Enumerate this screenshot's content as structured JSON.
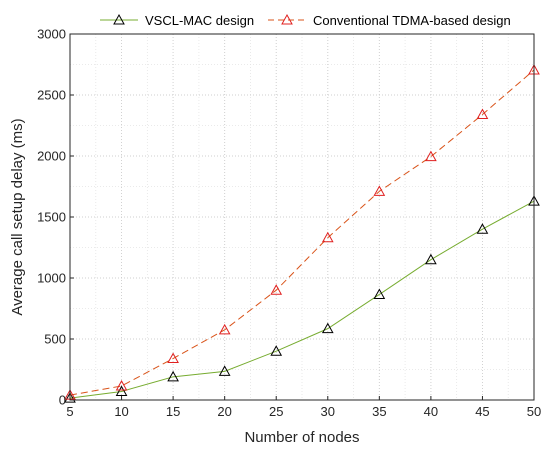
{
  "chart_data": {
    "type": "line",
    "title": "",
    "xlabel": "Number of nodes",
    "ylabel": "Average call setup delay (ms)",
    "x": [
      5,
      10,
      15,
      20,
      25,
      30,
      35,
      40,
      45,
      50
    ],
    "xlim": [
      5,
      50
    ],
    "ylim": [
      0,
      3000
    ],
    "xticks": [
      "5",
      "10",
      "15",
      "20",
      "25",
      "30",
      "35",
      "40",
      "45",
      "50"
    ],
    "yticks": [
      "0",
      "500",
      "1000",
      "1500",
      "2000",
      "2500",
      "3000"
    ],
    "grid": true,
    "legend_position": "top",
    "series": [
      {
        "name": "VSCL-MAC design",
        "color": "#77AC30",
        "marker_color": "#000000",
        "line_style": "solid",
        "marker": "triangle",
        "values": [
          15,
          70,
          190,
          235,
          400,
          585,
          865,
          1150,
          1400,
          1630
        ]
      },
      {
        "name": "Conventional TDMA-based design",
        "color": "#D95319",
        "marker_color": "#E02020",
        "line_style": "dashed",
        "marker": "triangle",
        "values": [
          40,
          115,
          340,
          575,
          900,
          1330,
          1710,
          1995,
          2340,
          2705
        ]
      }
    ]
  }
}
